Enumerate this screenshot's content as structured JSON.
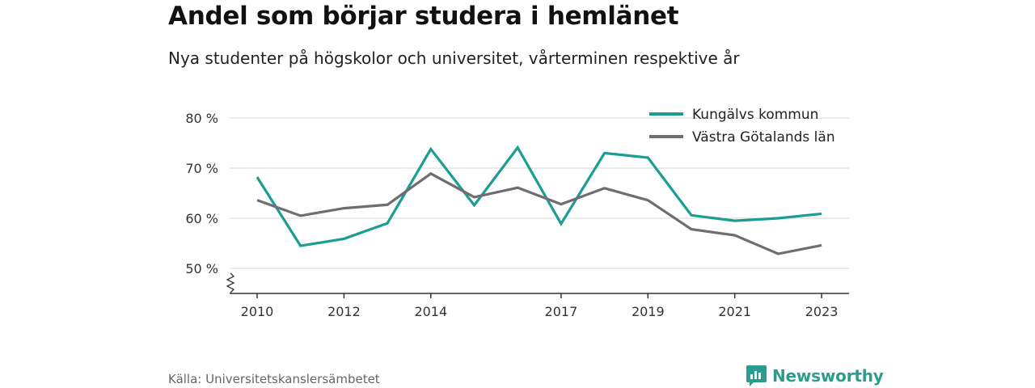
{
  "title": "Andel som börjar studera i hemlänet",
  "subtitle": "Nya studenter på högskolor och universitet, vårterminen respektive år",
  "source": "Källa: Universitetskanslersämbetet",
  "brand": "Newsworthy",
  "colors": {
    "kungalv": "#1a9e93",
    "vastra": "#6f6d72",
    "grid": "#d4d4d4",
    "axis": "#333333",
    "brand": "#2a9d8f"
  },
  "chart_data": {
    "type": "line",
    "x": [
      2010,
      2011,
      2012,
      2013,
      2014,
      2015,
      2016,
      2017,
      2018,
      2019,
      2020,
      2021,
      2022,
      2023
    ],
    "xticks": [
      "2010",
      "2012",
      "2014",
      "2017",
      "2019",
      "2021",
      "2023"
    ],
    "yticks": [
      "50 %",
      "60 %",
      "70 %",
      "80 %"
    ],
    "ylim": [
      45,
      82
    ],
    "axis_break": true,
    "grid": true,
    "legend": "top-right",
    "series": [
      {
        "name": "Kungälvs kommun",
        "color": "#1a9e93",
        "values": [
          68.2,
          54.5,
          55.9,
          59.0,
          73.8,
          62.6,
          74.1,
          58.9,
          73.0,
          72.1,
          60.6,
          59.5,
          60.0,
          60.9
        ]
      },
      {
        "name": "Västra Götalands län",
        "color": "#6f6d72",
        "values": [
          63.6,
          60.5,
          62.0,
          62.7,
          68.9,
          64.2,
          66.1,
          62.8,
          66.0,
          63.6,
          57.8,
          56.6,
          52.9,
          54.6
        ]
      }
    ]
  }
}
